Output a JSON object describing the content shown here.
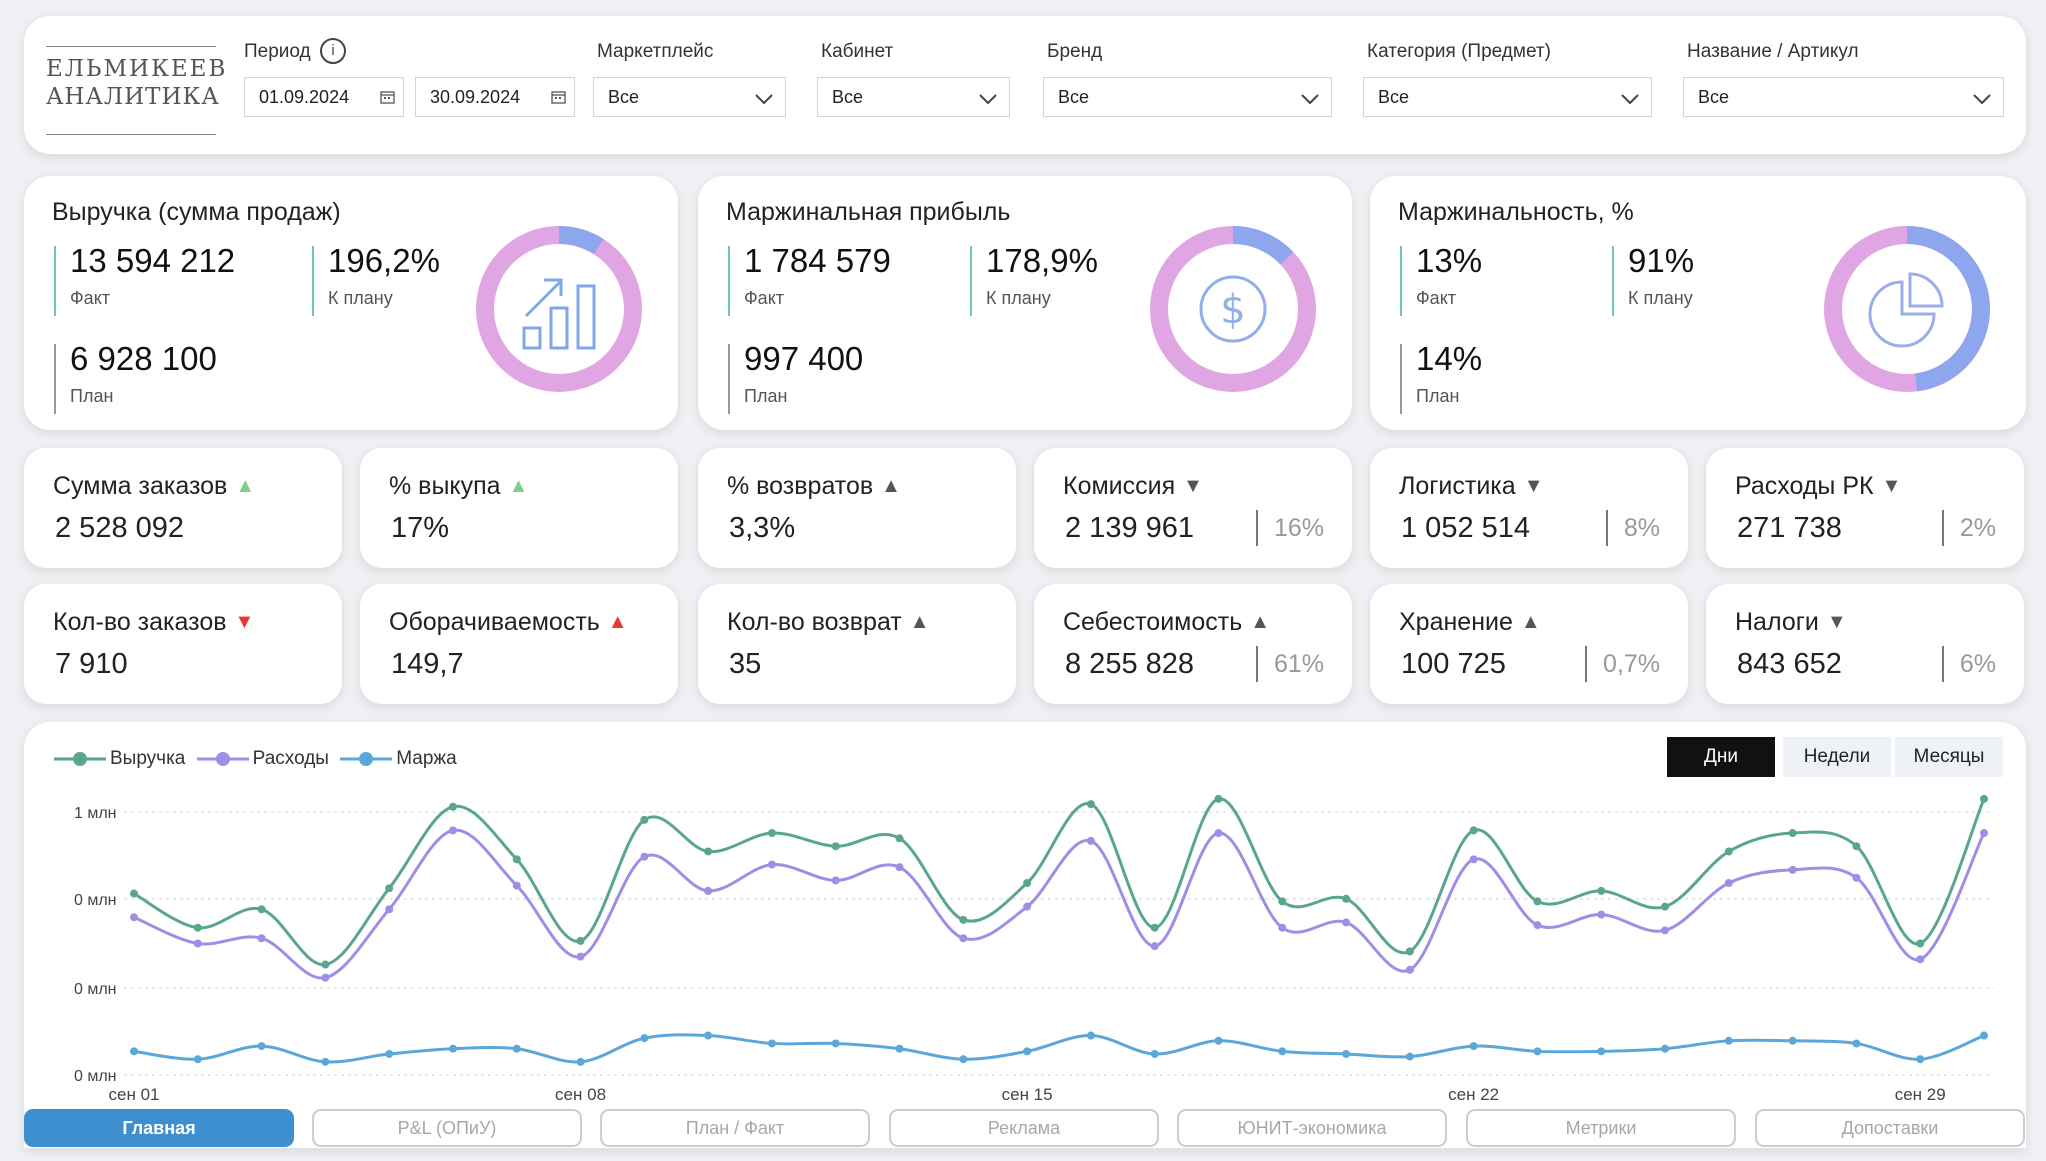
{
  "logo": {
    "line1": "ЕЛЬМИКЕЕВ",
    "line2": "АНАЛИТИКА"
  },
  "filters": {
    "period_label": "Период",
    "date_from": "01.09.2024",
    "date_to": "30.09.2024",
    "marketplace": {
      "label": "Маркетплейс",
      "value": "Все"
    },
    "cabinet": {
      "label": "Кабинет",
      "value": "Все"
    },
    "brand": {
      "label": "Бренд",
      "value": "Все"
    },
    "category": {
      "label": "Категория (Предмет)",
      "value": "Все"
    },
    "article": {
      "label": "Название / Артикул",
      "value": "Все"
    }
  },
  "kpi_big": [
    {
      "title": "Выручка (сумма продаж)",
      "fact": "13 594 212",
      "fact_label": "Факт",
      "plan_pct": "196,2%",
      "plan_pct_label": "К плану",
      "plan": "6 928 100",
      "plan_label": "План",
      "donut_share": 0.09
    },
    {
      "title": "Маржинальная прибыль",
      "fact": "1 784 579",
      "fact_label": "Факт",
      "plan_pct": "178,9%",
      "plan_pct_label": "К плану",
      "plan": "997 400",
      "plan_label": "План",
      "donut_share": 0.13
    },
    {
      "title": "Маржинальность, %",
      "fact": "13%",
      "fact_label": "Факт",
      "plan_pct": "91%",
      "plan_pct_label": "К плану",
      "plan": "14%",
      "plan_label": "План",
      "donut_share": 0.48
    }
  ],
  "kpi_small": [
    {
      "title": "Сумма заказов",
      "arrow": "▲",
      "arrow_color": "#7fcf86",
      "value": "2 528 092",
      "pct": ""
    },
    {
      "title": "% выкупа",
      "arrow": "▲",
      "arrow_color": "#7fcf86",
      "value": "17%",
      "pct": ""
    },
    {
      "title": "% возвратов",
      "arrow": "▲",
      "arrow_color": "#555555",
      "value": "3,3%",
      "pct": ""
    },
    {
      "title": "Комиссия",
      "arrow": "▼",
      "arrow_color": "#555555",
      "value": "2 139 961",
      "pct": "16%"
    },
    {
      "title": "Логистика",
      "arrow": "▼",
      "arrow_color": "#555555",
      "value": "1 052 514",
      "pct": "8%"
    },
    {
      "title": "Расходы РК",
      "arrow": "▼",
      "arrow_color": "#555555",
      "value": "271 738",
      "pct": "2%"
    },
    {
      "title": "Кол-во заказов",
      "arrow": "▼",
      "arrow_color": "#e53935",
      "value": "7 910",
      "pct": ""
    },
    {
      "title": "Оборачиваемость",
      "arrow": "▲",
      "arrow_color": "#e53935",
      "value": "149,7",
      "pct": ""
    },
    {
      "title": "Кол-во возврат",
      "arrow": "▲",
      "arrow_color": "#555555",
      "value": "35",
      "pct": ""
    },
    {
      "title": "Себестоимость",
      "arrow": "▲",
      "arrow_color": "#555555",
      "value": "8 255 828",
      "pct": "61%"
    },
    {
      "title": "Хранение",
      "arrow": "▲",
      "arrow_color": "#555555",
      "value": "100 725",
      "pct": "0,7%"
    },
    {
      "title": "Налоги",
      "arrow": "▼",
      "arrow_color": "#555555",
      "value": "843 652",
      "pct": "6%"
    }
  ],
  "chart_toggle": {
    "days": "Дни",
    "weeks": "Недели",
    "months": "Месяцы",
    "active": "days"
  },
  "chart_data": {
    "type": "line",
    "title": "",
    "xlabel": "",
    "ylabel": "",
    "x": [
      1,
      2,
      3,
      4,
      5,
      6,
      7,
      8,
      9,
      10,
      11,
      12,
      13,
      14,
      15,
      16,
      17,
      18,
      19,
      20,
      21,
      22,
      23,
      24,
      25,
      26,
      27,
      28,
      29,
      30
    ],
    "x_ticks": [
      {
        "x": 1,
        "label": "сен 01"
      },
      {
        "x": 8,
        "label": "сен 08"
      },
      {
        "x": 15,
        "label": "сен 15"
      },
      {
        "x": 22,
        "label": "сен 22"
      },
      {
        "x": 29,
        "label": "сен 29"
      }
    ],
    "y_ticks": [
      {
        "y": 1.0,
        "label": "1 млн"
      },
      {
        "y": 0.67,
        "label": "0 млн"
      },
      {
        "y": 0.33,
        "label": "0 млн"
      },
      {
        "y": 0.0,
        "label": "0 млн"
      }
    ],
    "ylim": [
      0,
      1.0
    ],
    "grid": true,
    "legend": "top-left",
    "series": [
      {
        "name": "Выручка",
        "color": "#5aa58e",
        "values": [
          0.69,
          0.56,
          0.63,
          0.42,
          0.71,
          1.02,
          0.82,
          0.51,
          0.97,
          0.85,
          0.92,
          0.87,
          0.9,
          0.59,
          0.73,
          1.03,
          0.56,
          1.05,
          0.66,
          0.67,
          0.47,
          0.93,
          0.66,
          0.7,
          0.64,
          0.85,
          0.92,
          0.87,
          0.5,
          1.05
        ]
      },
      {
        "name": "Расходы",
        "color": "#a08de6",
        "values": [
          0.6,
          0.5,
          0.52,
          0.37,
          0.63,
          0.93,
          0.72,
          0.45,
          0.83,
          0.7,
          0.8,
          0.74,
          0.79,
          0.52,
          0.64,
          0.89,
          0.49,
          0.92,
          0.56,
          0.58,
          0.4,
          0.82,
          0.57,
          0.61,
          0.55,
          0.73,
          0.78,
          0.75,
          0.44,
          0.92
        ]
      },
      {
        "name": "Маржа",
        "color": "#5aa7d8",
        "values": [
          0.09,
          0.06,
          0.11,
          0.05,
          0.08,
          0.1,
          0.1,
          0.05,
          0.14,
          0.15,
          0.12,
          0.12,
          0.1,
          0.06,
          0.09,
          0.15,
          0.08,
          0.13,
          0.09,
          0.08,
          0.07,
          0.11,
          0.09,
          0.09,
          0.1,
          0.13,
          0.13,
          0.12,
          0.06,
          0.15
        ]
      }
    ]
  },
  "nav": [
    "Главная",
    "P&L (ОПиУ)",
    "План / Факт",
    "Реклама",
    "ЮНИТ-экономика",
    "Метрики",
    "Допоставки"
  ]
}
